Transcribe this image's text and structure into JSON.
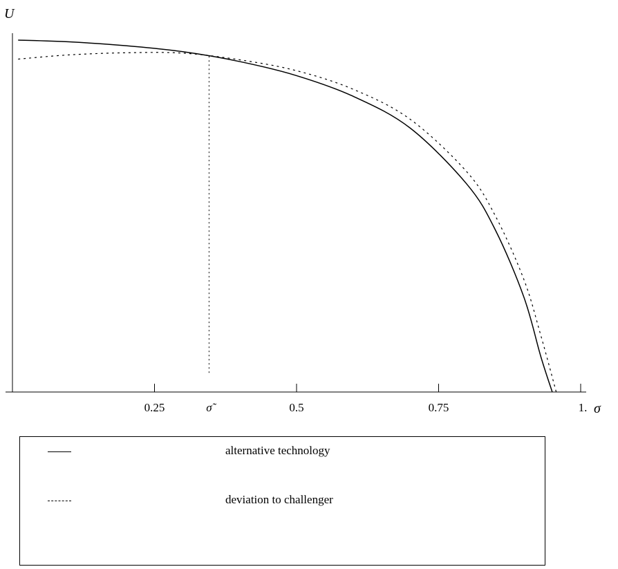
{
  "chart_data": {
    "type": "line",
    "xlabel": "σ",
    "ylabel": "U",
    "xlim": [
      0,
      1.0
    ],
    "x_ticks": [
      "0.25",
      "σ̃",
      "0.5",
      "0.75",
      "1."
    ],
    "x_tick_values": [
      0.25,
      0.346,
      0.5,
      0.75,
      1.0
    ],
    "ylim": [
      0,
      1.0
    ],
    "grid": false,
    "legend_position": "bottom",
    "annotations": [
      {
        "type": "vertical-dotted-line",
        "x": 0.346,
        "label": "σ̃"
      }
    ],
    "series": [
      {
        "name": "alternative technology",
        "style": "solid",
        "x": [
          0.01,
          0.1,
          0.2,
          0.3,
          0.4,
          0.5,
          0.6,
          0.7,
          0.8,
          0.85,
          0.9,
          0.93,
          0.95
        ],
        "y": [
          1.0,
          0.995,
          0.984,
          0.967,
          0.939,
          0.899,
          0.84,
          0.75,
          0.59,
          0.46,
          0.27,
          0.1,
          0.0
        ]
      },
      {
        "name": "deviation to challenger",
        "style": "dotted",
        "x": [
          0.01,
          0.1,
          0.2,
          0.3,
          0.4,
          0.5,
          0.6,
          0.7,
          0.8,
          0.85,
          0.9,
          0.93,
          0.957
        ],
        "y": [
          0.946,
          0.958,
          0.964,
          0.963,
          0.944,
          0.913,
          0.86,
          0.775,
          0.625,
          0.5,
          0.32,
          0.16,
          0.0
        ]
      }
    ]
  },
  "legend": {
    "items": [
      {
        "label": "alternative technology"
      },
      {
        "label": "deviation to challenger"
      }
    ]
  }
}
